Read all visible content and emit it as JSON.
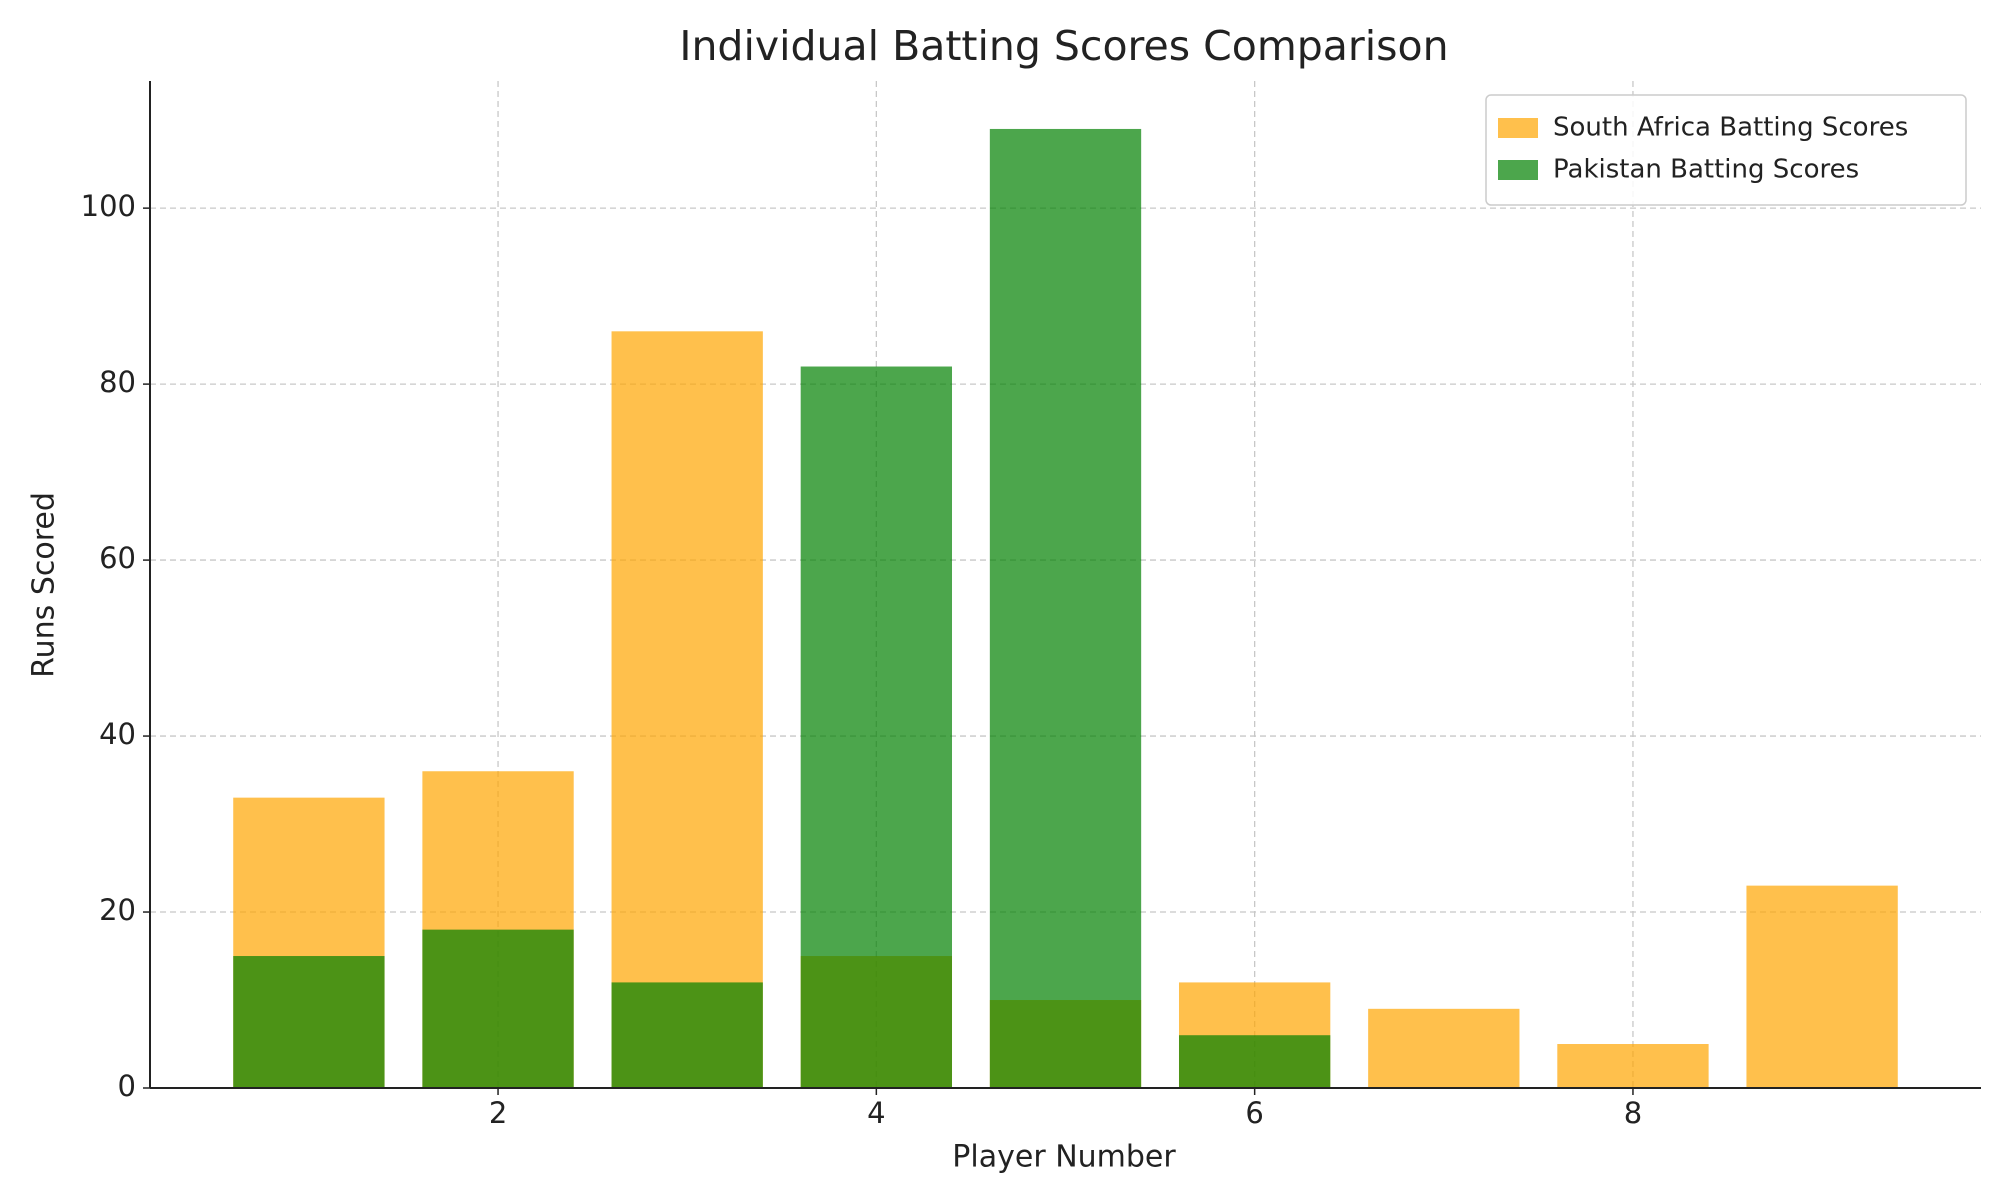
{
  "chart_data": {
    "type": "bar",
    "title": "Individual Batting Scores Comparison",
    "x_label": "Player Number",
    "y_label": "Runs Scored",
    "series": [
      {
        "name": "South Africa Batting Scores",
        "color": "#FFA500",
        "x": [
          1,
          2,
          3,
          4,
          5,
          6,
          7,
          8,
          9
        ],
        "values": [
          33,
          36,
          86,
          15,
          10,
          12,
          9,
          5,
          23
        ]
      },
      {
        "name": "Pakistan Batting Scores",
        "color": "#008000",
        "x": [
          1,
          2,
          3,
          4,
          5,
          6
        ],
        "values": [
          15,
          18,
          12,
          82,
          109,
          6
        ]
      }
    ],
    "alpha": 0.7,
    "bar_width": 0.8,
    "xlim": [
      0.16,
      9.84
    ],
    "xticks": [
      2,
      4,
      6,
      8
    ],
    "ylim": [
      0,
      114.45
    ],
    "yticks": [
      0,
      20,
      40,
      60,
      80,
      100
    ],
    "grid": true,
    "legend": "upper right"
  }
}
